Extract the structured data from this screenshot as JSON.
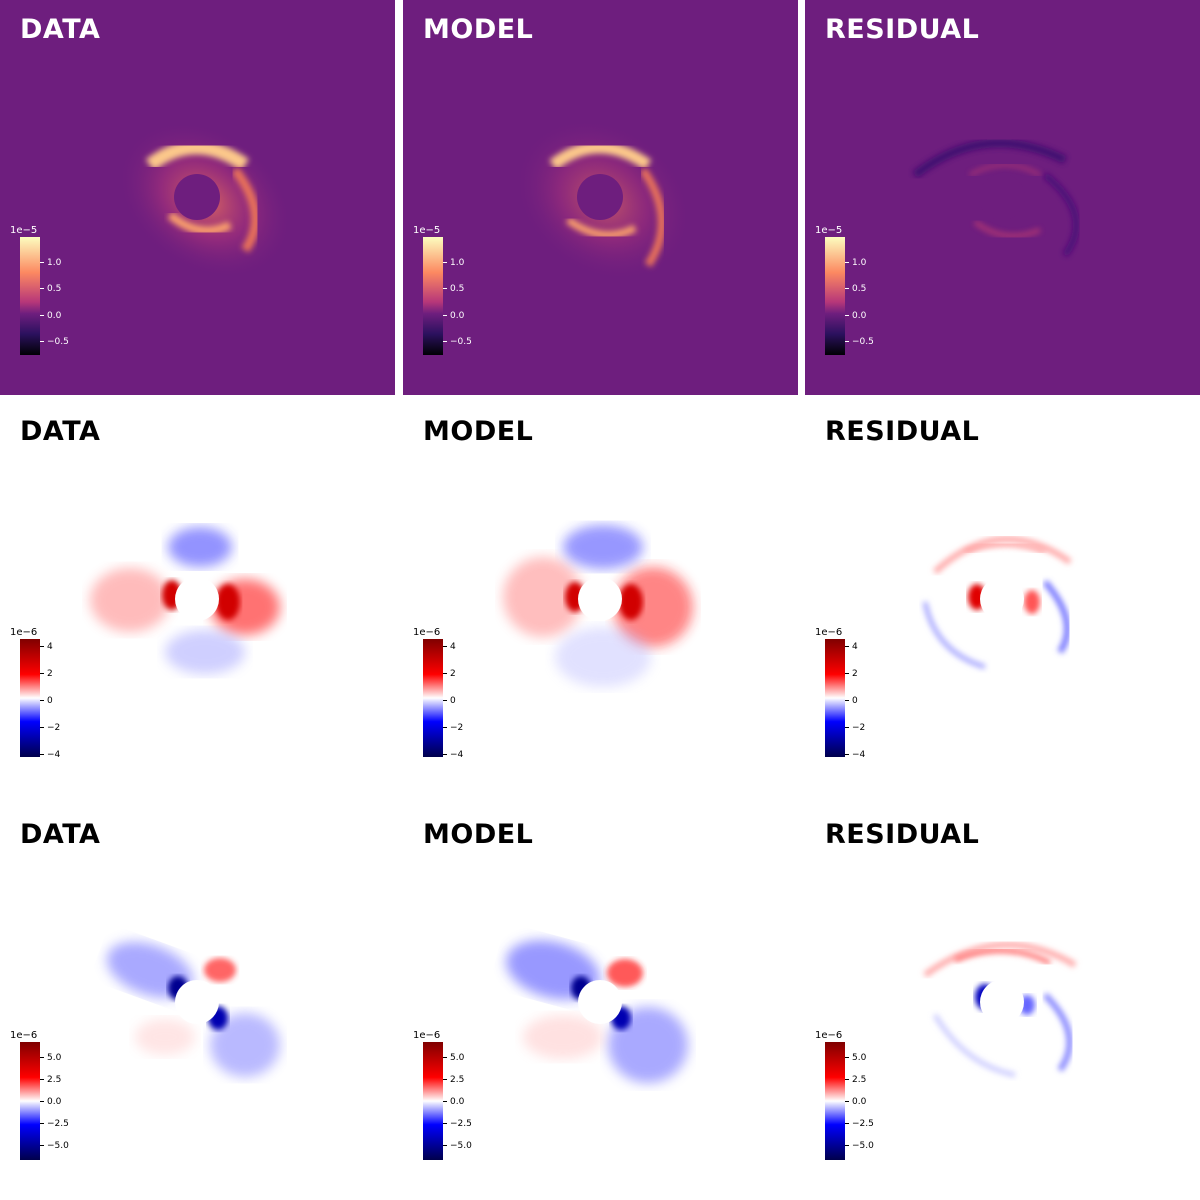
{
  "rows": [
    {
      "cmap": "magma",
      "background": "#6e1e7e",
      "text_color": "#ffffff",
      "colorbar": {
        "exponent": "1e−5",
        "ticks": [
          "1.0",
          "0.5",
          "0.0",
          "−0.5"
        ]
      },
      "panels": [
        {
          "title": "DATA"
        },
        {
          "title": "MODEL"
        },
        {
          "title": "RESIDUAL"
        }
      ]
    },
    {
      "cmap": "seismic",
      "background": "#ffffff",
      "text_color": "#000000",
      "colorbar": {
        "exponent": "1e−6",
        "ticks": [
          "4",
          "2",
          "0",
          "−2",
          "−4"
        ]
      },
      "panels": [
        {
          "title": "DATA"
        },
        {
          "title": "MODEL"
        },
        {
          "title": "RESIDUAL"
        }
      ]
    },
    {
      "cmap": "seismic",
      "background": "#ffffff",
      "text_color": "#000000",
      "colorbar": {
        "exponent": "1e−6",
        "ticks": [
          "5.0",
          "2.5",
          "0.0",
          "−2.5",
          "−5.0"
        ]
      },
      "panels": [
        {
          "title": "DATA"
        },
        {
          "title": "MODEL"
        },
        {
          "title": "RESIDUAL"
        }
      ]
    }
  ]
}
